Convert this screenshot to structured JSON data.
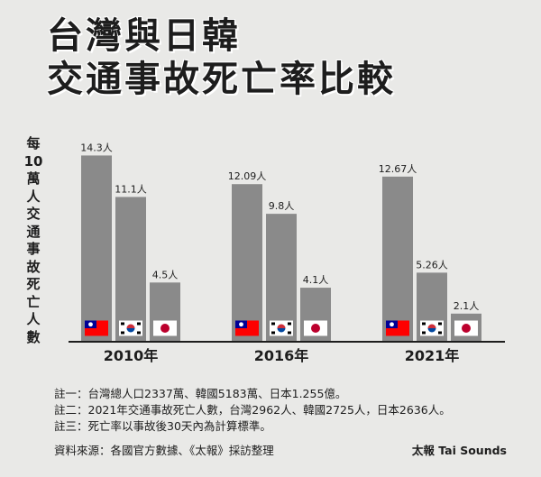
{
  "title_lines": [
    "台灣與日韓",
    "交通事故死亡率比較"
  ],
  "chart_data": {
    "type": "bar",
    "title": "台灣與日韓交通事故死亡率比較",
    "ylabel": "每10萬人交通事故死亡人數",
    "xlabel": "",
    "ylim": [
      0,
      16
    ],
    "categories": [
      "2010年",
      "2016年",
      "2021年"
    ],
    "series": [
      {
        "name": "台灣",
        "flag": "taiwan-flag-icon",
        "values": [
          14.3,
          12.09,
          12.67
        ],
        "labels": [
          "14.3人",
          "12.09人",
          "12.67人"
        ]
      },
      {
        "name": "韓國",
        "flag": "korea-flag-icon",
        "values": [
          11.1,
          9.8,
          5.26
        ],
        "labels": [
          "11.1人",
          "9.8人",
          "5.26人"
        ]
      },
      {
        "name": "日本",
        "flag": "japan-flag-icon",
        "values": [
          4.5,
          4.1,
          2.1
        ],
        "labels": [
          "4.5人",
          "4.1人",
          "2.1人"
        ]
      }
    ],
    "grid": false,
    "legend": "none"
  },
  "notes": [
    "註一：台灣總人口2337萬、韓國5183萬、日本1.255億。",
    "註二：2021年交通事故死亡人數，台灣2962人、韓國2725人，日本2636人。",
    "註三：死亡率以事故後30天內為計算標準。"
  ],
  "source": "資料來源：各國官方數據、《太報》採訪整理",
  "brand": "太報 Tai Sounds",
  "colors": {
    "bar": "#8a8a8a",
    "text": "#1d1d1d",
    "background": "#e9e9e7",
    "taiwan_red": "#fe0000",
    "taiwan_blue": "#000095",
    "korea_red": "#cd2e3a",
    "korea_blue": "#0047a0",
    "japan_red": "#bc002d"
  }
}
